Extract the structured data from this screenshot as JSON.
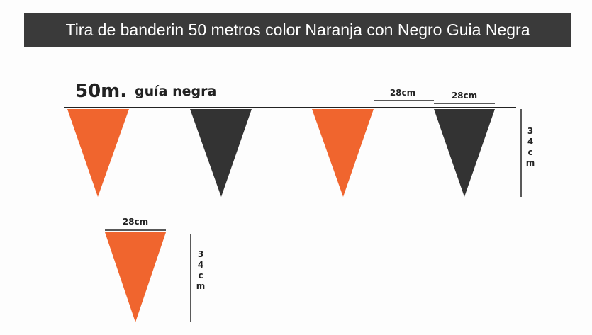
{
  "title": "Tira de banderin 50 metros color Naranja con Negro Guia Negra",
  "header": {
    "length": "50m.",
    "guide": "guía negra"
  },
  "width_labels": [
    "28cm",
    "28cm",
    "28cm"
  ],
  "height_labels": [
    "34cm",
    "34cm"
  ]
}
